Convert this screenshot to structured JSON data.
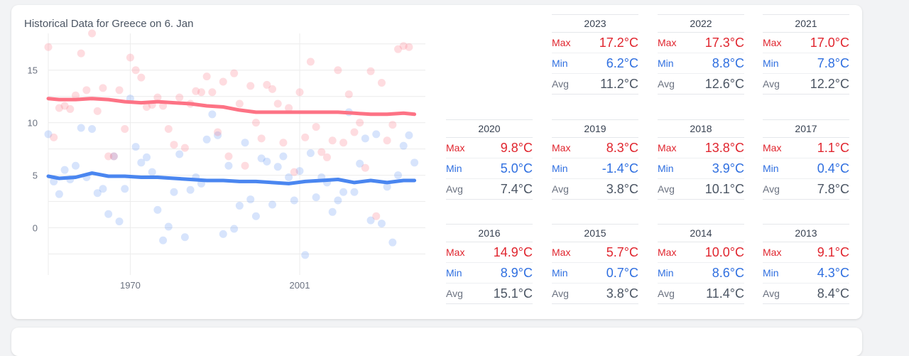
{
  "title": "Historical Data for Greece on 6. Jan",
  "chart_data": {
    "type": "scatter",
    "title": "Historical Data for Greece on 6. Jan",
    "x_ticks": [
      "1970",
      "2001"
    ],
    "y_ticks": [
      0,
      5,
      10,
      15
    ],
    "ylim": [
      -4.5,
      18.5
    ],
    "xlim": [
      1955,
      2024
    ],
    "colors": {
      "max": "#fd7385",
      "min": "#4a86f0"
    },
    "series": [
      {
        "name": "Max",
        "points": [
          [
            1955,
            17.2
          ],
          [
            1956,
            8.6
          ],
          [
            1957,
            11.4
          ],
          [
            1958,
            11.6
          ],
          [
            1959,
            11.3
          ],
          [
            1960,
            12.6
          ],
          [
            1961,
            16.6
          ],
          [
            1962,
            13.1
          ],
          [
            1963,
            18.5
          ],
          [
            1964,
            11.1
          ],
          [
            1965,
            13.3
          ],
          [
            1966,
            6.8
          ],
          [
            1967,
            6.8
          ],
          [
            1968,
            13.1
          ],
          [
            1969,
            9.4
          ],
          [
            1970,
            16.2
          ],
          [
            1971,
            15.0
          ],
          [
            1972,
            14.3
          ],
          [
            1973,
            11.5
          ],
          [
            1974,
            11.7
          ],
          [
            1975,
            12.4
          ],
          [
            1976,
            11.6
          ],
          [
            1977,
            9.4
          ],
          [
            1978,
            7.9
          ],
          [
            1979,
            12.4
          ],
          [
            1980,
            7.6
          ],
          [
            1981,
            11.8
          ],
          [
            1982,
            13.0
          ],
          [
            1983,
            12.9
          ],
          [
            1984,
            14.4
          ],
          [
            1985,
            12.9
          ],
          [
            1986,
            9.1
          ],
          [
            1987,
            13.9
          ],
          [
            1988,
            6.8
          ],
          [
            1989,
            14.7
          ],
          [
            1990,
            11.8
          ],
          [
            1991,
            5.9
          ],
          [
            1992,
            13.5
          ],
          [
            1993,
            10.0
          ],
          [
            1994,
            8.5
          ],
          [
            1995,
            13.6
          ],
          [
            1996,
            13.2
          ],
          [
            1997,
            11.8
          ],
          [
            1998,
            8.1
          ],
          [
            1999,
            11.4
          ],
          [
            2000,
            5.3
          ],
          [
            2001,
            12.9
          ],
          [
            2002,
            8.6
          ],
          [
            2003,
            15.8
          ],
          [
            2004,
            9.6
          ],
          [
            2005,
            7.2
          ],
          [
            2006,
            6.7
          ],
          [
            2007,
            8.3
          ],
          [
            2008,
            15.0
          ],
          [
            2009,
            8.1
          ],
          [
            2010,
            12.7
          ],
          [
            2011,
            9.1
          ],
          [
            2012,
            10.0
          ],
          [
            2013,
            5.7
          ],
          [
            2014,
            14.9
          ],
          [
            2015,
            1.1
          ],
          [
            2016,
            13.8
          ],
          [
            2017,
            8.3
          ],
          [
            2018,
            9.8
          ],
          [
            2019,
            17.0
          ],
          [
            2020,
            17.3
          ],
          [
            2021,
            17.2
          ]
        ]
      },
      {
        "name": "Min",
        "points": [
          [
            1955,
            8.9
          ],
          [
            1956,
            4.4
          ],
          [
            1957,
            3.2
          ],
          [
            1958,
            5.5
          ],
          [
            1959,
            4.6
          ],
          [
            1960,
            5.9
          ],
          [
            1961,
            9.5
          ],
          [
            1962,
            4.8
          ],
          [
            1963,
            9.4
          ],
          [
            1964,
            3.3
          ],
          [
            1965,
            3.7
          ],
          [
            1966,
            1.3
          ],
          [
            1967,
            6.8
          ],
          [
            1968,
            0.6
          ],
          [
            1969,
            3.7
          ],
          [
            1970,
            12.3
          ],
          [
            1971,
            7.7
          ],
          [
            1972,
            6.2
          ],
          [
            1973,
            6.7
          ],
          [
            1974,
            5.3
          ],
          [
            1975,
            1.7
          ],
          [
            1976,
            -1.2
          ],
          [
            1977,
            0.1
          ],
          [
            1978,
            3.4
          ],
          [
            1979,
            7.0
          ],
          [
            1980,
            -0.9
          ],
          [
            1981,
            3.6
          ],
          [
            1982,
            4.8
          ],
          [
            1983,
            4.2
          ],
          [
            1984,
            8.4
          ],
          [
            1985,
            10.8
          ],
          [
            1986,
            8.8
          ],
          [
            1987,
            -0.6
          ],
          [
            1988,
            5.9
          ],
          [
            1989,
            -0.1
          ],
          [
            1990,
            2.1
          ],
          [
            1991,
            8.1
          ],
          [
            1992,
            2.7
          ],
          [
            1993,
            1.1
          ],
          [
            1994,
            6.6
          ],
          [
            1995,
            6.3
          ],
          [
            1996,
            2.2
          ],
          [
            1997,
            5.8
          ],
          [
            1998,
            6.8
          ],
          [
            1999,
            4.8
          ],
          [
            2000,
            2.6
          ],
          [
            2001,
            5.4
          ],
          [
            2002,
            -2.6
          ],
          [
            2003,
            7.1
          ],
          [
            2004,
            2.9
          ],
          [
            2005,
            4.8
          ],
          [
            2006,
            4.3
          ],
          [
            2007,
            1.5
          ],
          [
            2008,
            2.6
          ],
          [
            2009,
            3.4
          ],
          [
            2010,
            11.0
          ],
          [
            2011,
            3.4
          ],
          [
            2012,
            6.1
          ],
          [
            2013,
            8.5
          ],
          [
            2014,
            0.7
          ],
          [
            2015,
            8.9
          ],
          [
            2016,
            0.4
          ],
          [
            2017,
            3.9
          ],
          [
            2018,
            -1.4
          ],
          [
            2019,
            5.0
          ],
          [
            2020,
            7.8
          ],
          [
            2021,
            8.8
          ],
          [
            2022,
            6.2
          ]
        ]
      },
      {
        "name": "Max trend",
        "points": [
          [
            1955,
            12.3
          ],
          [
            1957,
            12.2
          ],
          [
            1960,
            12.2
          ],
          [
            1963,
            12.3
          ],
          [
            1966,
            12.2
          ],
          [
            1969,
            12.0
          ],
          [
            1972,
            11.9
          ],
          [
            1975,
            12.0
          ],
          [
            1978,
            11.9
          ],
          [
            1981,
            11.8
          ],
          [
            1984,
            11.6
          ],
          [
            1987,
            11.5
          ],
          [
            1990,
            11.2
          ],
          [
            1993,
            11.0
          ],
          [
            1996,
            11.0
          ],
          [
            1999,
            11.0
          ],
          [
            2002,
            11.0
          ],
          [
            2005,
            11.0
          ],
          [
            2008,
            11.0
          ],
          [
            2011,
            10.9
          ],
          [
            2014,
            10.8
          ],
          [
            2017,
            10.8
          ],
          [
            2020,
            10.9
          ],
          [
            2022,
            10.8
          ]
        ]
      },
      {
        "name": "Min trend",
        "points": [
          [
            1955,
            4.9
          ],
          [
            1957,
            4.7
          ],
          [
            1960,
            4.8
          ],
          [
            1963,
            5.2
          ],
          [
            1966,
            4.9
          ],
          [
            1969,
            4.9
          ],
          [
            1972,
            4.8
          ],
          [
            1975,
            4.8
          ],
          [
            1978,
            4.7
          ],
          [
            1981,
            4.6
          ],
          [
            1984,
            4.5
          ],
          [
            1987,
            4.5
          ],
          [
            1990,
            4.4
          ],
          [
            1993,
            4.4
          ],
          [
            1996,
            4.3
          ],
          [
            1999,
            4.2
          ],
          [
            2002,
            4.4
          ],
          [
            2005,
            4.5
          ],
          [
            2008,
            4.6
          ],
          [
            2011,
            4.3
          ],
          [
            2014,
            4.5
          ],
          [
            2017,
            4.3
          ],
          [
            2020,
            4.5
          ],
          [
            2022,
            4.5
          ]
        ]
      }
    ]
  },
  "years": [
    {
      "year": "2023",
      "rows": [
        {
          "label": "Max",
          "value": "17.2°C"
        },
        {
          "label": "Min",
          "value": "6.2°C"
        },
        {
          "label": "Avg",
          "value": "11.2°C"
        }
      ]
    },
    {
      "year": "2022",
      "rows": [
        {
          "label": "Max",
          "value": "17.3°C"
        },
        {
          "label": "Min",
          "value": "8.8°C"
        },
        {
          "label": "Avg",
          "value": "12.6°C"
        }
      ]
    },
    {
      "year": "2021",
      "rows": [
        {
          "label": "Max",
          "value": "17.0°C"
        },
        {
          "label": "Min",
          "value": "7.8°C"
        },
        {
          "label": "Avg",
          "value": "12.2°C"
        }
      ]
    },
    {
      "year": "2020",
      "rows": [
        {
          "label": "Max",
          "value": "9.8°C"
        },
        {
          "label": "Min",
          "value": "5.0°C"
        },
        {
          "label": "Avg",
          "value": "7.4°C"
        }
      ]
    },
    {
      "year": "2019",
      "rows": [
        {
          "label": "Max",
          "value": "8.3°C"
        },
        {
          "label": "Min",
          "value": "-1.4°C"
        },
        {
          "label": "Avg",
          "value": "3.8°C"
        }
      ]
    },
    {
      "year": "2018",
      "rows": [
        {
          "label": "Max",
          "value": "13.8°C"
        },
        {
          "label": "Min",
          "value": "3.9°C"
        },
        {
          "label": "Avg",
          "value": "10.1°C"
        }
      ]
    },
    {
      "year": "2017",
      "rows": [
        {
          "label": "Max",
          "value": "1.1°C"
        },
        {
          "label": "Min",
          "value": "0.4°C"
        },
        {
          "label": "Avg",
          "value": "7.8°C"
        }
      ]
    },
    {
      "year": "2016",
      "rows": [
        {
          "label": "Max",
          "value": "14.9°C"
        },
        {
          "label": "Min",
          "value": "8.9°C"
        },
        {
          "label": "Avg",
          "value": "15.1°C"
        }
      ]
    },
    {
      "year": "2015",
      "rows": [
        {
          "label": "Max",
          "value": "5.7°C"
        },
        {
          "label": "Min",
          "value": "0.7°C"
        },
        {
          "label": "Avg",
          "value": "3.8°C"
        }
      ]
    },
    {
      "year": "2014",
      "rows": [
        {
          "label": "Max",
          "value": "10.0°C"
        },
        {
          "label": "Min",
          "value": "8.6°C"
        },
        {
          "label": "Avg",
          "value": "11.4°C"
        }
      ]
    },
    {
      "year": "2013",
      "rows": [
        {
          "label": "Max",
          "value": "9.1°C"
        },
        {
          "label": "Min",
          "value": "4.3°C"
        },
        {
          "label": "Avg",
          "value": "8.4°C"
        }
      ]
    }
  ]
}
